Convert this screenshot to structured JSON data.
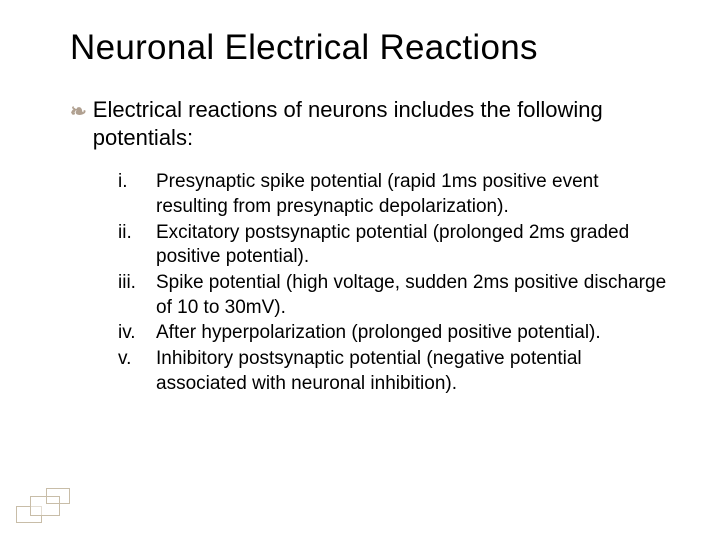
{
  "title": "Neuronal Electrical Reactions",
  "intro": "Electrical reactions of neurons includes the following potentials:",
  "items": [
    {
      "marker": "i.",
      "text": "Presynaptic spike potential (rapid 1ms positive event resulting from presynaptic depolarization)."
    },
    {
      "marker": "ii.",
      "text": "Excitatory postsynaptic potential (prolonged 2ms graded positive potential)."
    },
    {
      "marker": "iii.",
      "text": "Spike potential (high voltage, sudden 2ms positive discharge of 10 to 30mV)."
    },
    {
      "marker": "iv.",
      "text": "After hyperpolarization (prolonged positive potential)."
    },
    {
      "marker": "v.",
      "text": "Inhibitory postsynaptic potential (negative potential associated with neuronal inhibition)."
    }
  ],
  "colors": {
    "text": "#000000",
    "bullet": "#b0a090",
    "deco_border": "#c8bda8",
    "background": "#ffffff"
  },
  "typography": {
    "title_fontsize": 35,
    "intro_fontsize": 22,
    "item_fontsize": 19,
    "font_family": "Arial"
  }
}
